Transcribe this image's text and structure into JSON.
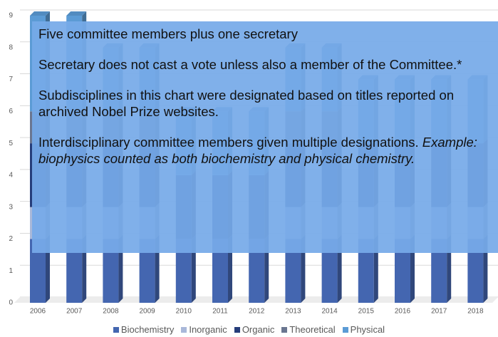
{
  "chart_data": {
    "type": "bar",
    "stacked": true,
    "categories": [
      "2006",
      "2007",
      "2008",
      "2009",
      "2010",
      "2011",
      "2012",
      "2013",
      "2014",
      "2015",
      "2016",
      "2017",
      "2018"
    ],
    "series": [
      {
        "name": "Biochemistry",
        "color": "#4466b0",
        "values": [
          2,
          2,
          2,
          2,
          2,
          2,
          2,
          2,
          2,
          2,
          2,
          2,
          2
        ]
      },
      {
        "name": "Inorganic",
        "color": "#a9b8d9",
        "values": [
          1,
          1,
          1,
          1,
          0,
          0,
          0,
          1,
          1,
          1,
          1,
          1,
          1
        ]
      },
      {
        "name": "Organic",
        "color": "#263d7a",
        "values": [
          2,
          2,
          2,
          2,
          2,
          2,
          2,
          2,
          2,
          2,
          2,
          2,
          2
        ]
      },
      {
        "name": "Theoretical",
        "color": "#6a7690",
        "values": [
          1,
          1,
          1,
          1,
          0,
          0,
          0,
          1,
          1,
          0,
          0,
          0,
          0
        ]
      },
      {
        "name": "Physical",
        "color": "#5b9bd5",
        "values": [
          3,
          3,
          2,
          2,
          2,
          2,
          2,
          2,
          2,
          2,
          2,
          2,
          2
        ]
      }
    ],
    "ylim": [
      0,
      9
    ],
    "yticks": [
      0,
      1,
      2,
      3,
      4,
      5,
      6,
      7,
      8,
      9
    ],
    "grid": true,
    "annotations": [
      "Five committee members plus one secretary",
      "Secretary does not cast a vote unless also a member of the Committee.*",
      "Subdisciplines in this chart were designated based on titles reported on archived Nobel Prize websites.",
      "Interdisciplinary committee members given multiple designations."
    ],
    "annotation_italic": "Example: biophysics counted as both biochemistry and physical chemistry."
  }
}
